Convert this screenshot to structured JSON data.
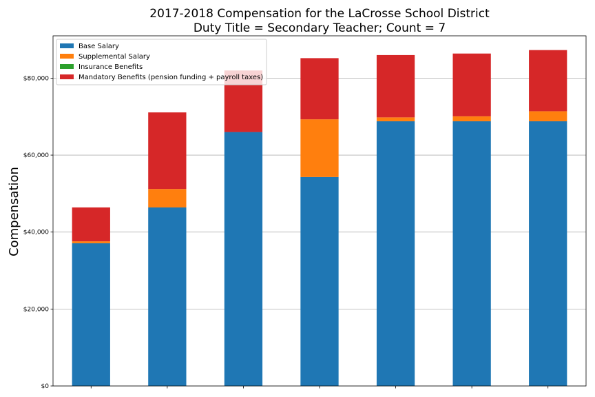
{
  "chart_data": {
    "type": "bar",
    "stacked": true,
    "title": "2017-2018 Compensation for the LaCrosse School District",
    "subtitle": "Duty Title = Secondary Teacher; Count = 7",
    "xlabel": "",
    "ylabel": "Compensation",
    "ylim": [
      0,
      91000
    ],
    "yticks": [
      0,
      20000,
      40000,
      60000,
      80000
    ],
    "ytick_labels": [
      "$0",
      "$20,000",
      "$40,000",
      "$60,000",
      "$80,000"
    ],
    "grid": "horizontal",
    "legend_position": "top-left",
    "categories": [
      "",
      "",
      "",
      "",
      "",
      "",
      ""
    ],
    "series": [
      {
        "name": "Base Salary",
        "color": "#1f77b4",
        "values": [
          37100,
          46400,
          66000,
          54300,
          68800,
          68800,
          68800
        ]
      },
      {
        "name": "Supplemental Salary",
        "color": "#ff7f0e",
        "values": [
          500,
          4800,
          0,
          15000,
          1000,
          1300,
          2600
        ]
      },
      {
        "name": "Insurance Benefits",
        "color": "#2ca02c",
        "values": [
          0,
          0,
          0,
          0,
          0,
          0,
          0
        ]
      },
      {
        "name": "Mandatory Benefits (pension funding + payroll taxes)",
        "color": "#d62728",
        "values": [
          8800,
          19900,
          16000,
          15900,
          16200,
          16300,
          15900
        ]
      }
    ]
  }
}
